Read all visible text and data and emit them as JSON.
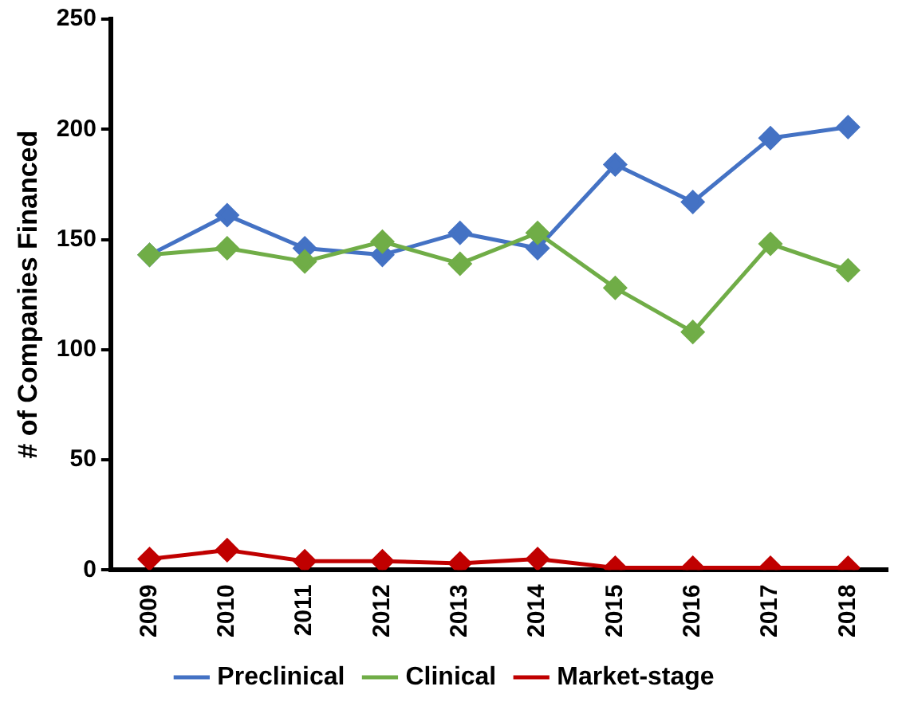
{
  "chart_data": {
    "type": "line",
    "ylabel": "# of Companies Financed",
    "categories": [
      "2009",
      "2010",
      "2011",
      "2012",
      "2013",
      "2014",
      "2015",
      "2016",
      "2017",
      "2018"
    ],
    "series": [
      {
        "name": "Preclinical",
        "color": "#4472c4",
        "values": [
          143,
          161,
          146,
          143,
          153,
          146,
          184,
          167,
          196,
          201
        ]
      },
      {
        "name": "Clinical",
        "color": "#70ad47",
        "values": [
          143,
          146,
          140,
          149,
          139,
          153,
          128,
          108,
          148,
          136
        ]
      },
      {
        "name": "Market-stage",
        "color": "#c00000",
        "values": [
          5,
          9,
          4,
          4,
          3,
          5,
          1,
          1,
          1,
          1
        ]
      }
    ],
    "ylim": [
      0,
      250
    ],
    "yticks": [
      0,
      50,
      100,
      150,
      200,
      250
    ],
    "legend": "bottom",
    "marker": "diamond",
    "line_style": "solid"
  }
}
